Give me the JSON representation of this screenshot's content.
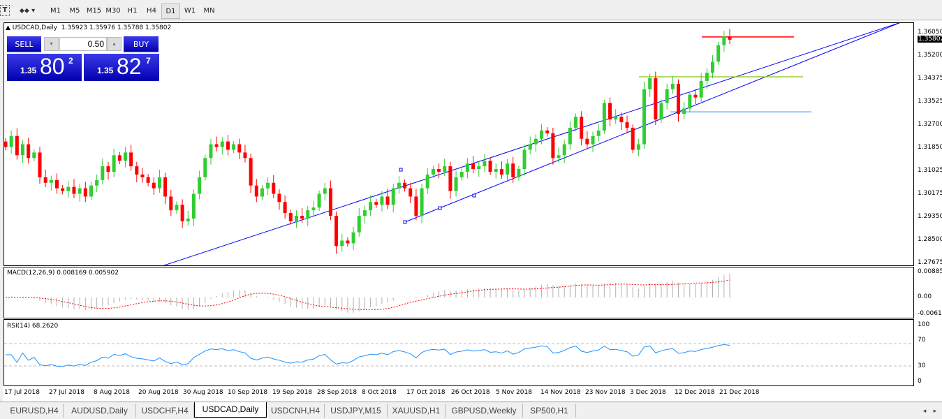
{
  "toolbar": {
    "icons": [
      "text-tool-icon",
      "objects-dropdown-icon"
    ],
    "timeframes": [
      "M1",
      "M5",
      "M15",
      "M30",
      "H1",
      "H4",
      "D1",
      "W1",
      "MN"
    ],
    "active_timeframe": "D1"
  },
  "chart": {
    "symbol_line": "USDCAD,Daily",
    "ohlc": "1.35923 1.35976 1.35788 1.35802",
    "trade_panel": {
      "sell_label": "SELL",
      "buy_label": "BUY",
      "volume": "0.50",
      "sell_prefix": "1.35",
      "sell_big": "80",
      "sell_sup": "2",
      "buy_prefix": "1.35",
      "buy_big": "82",
      "buy_sup": "7"
    },
    "price_axis": [
      "1.36050",
      "1.35200",
      "1.34375",
      "1.33525",
      "1.32700",
      "1.31850",
      "1.31025",
      "1.30175",
      "1.29350",
      "1.28500",
      "1.27675"
    ],
    "current_price": "1.35802",
    "colors": {
      "bull": "#32cd32",
      "bear": "#ff0000",
      "channel": "#0000ff",
      "level_red": "#ff0000",
      "level_olive": "#9acd32",
      "level_blue": "#1e90ff"
    },
    "closes": [
      1.319,
      1.323,
      1.316,
      1.32,
      1.315,
      1.317,
      1.308,
      1.306,
      1.307,
      1.304,
      1.303,
      1.3045,
      1.302,
      1.304,
      1.301,
      1.305,
      1.307,
      1.312,
      1.31,
      1.316,
      1.314,
      1.317,
      1.312,
      1.309,
      1.308,
      1.306,
      1.304,
      1.308,
      1.301,
      1.296,
      1.298,
      1.292,
      1.293,
      1.302,
      1.308,
      1.315,
      1.32,
      1.319,
      1.321,
      1.318,
      1.32,
      1.317,
      1.315,
      1.305,
      1.301,
      1.304,
      1.306,
      1.302,
      1.299,
      1.295,
      1.292,
      1.294,
      1.293,
      1.296,
      1.297,
      1.302,
      1.304,
      1.294,
      1.283,
      1.285,
      1.284,
      1.288,
      1.294,
      1.296,
      1.299,
      1.298,
      1.301,
      1.298,
      1.304,
      1.306,
      1.304,
      1.301,
      1.294,
      1.304,
      1.309,
      1.311,
      1.31,
      1.312,
      1.303,
      1.308,
      1.31,
      1.313,
      1.311,
      1.312,
      1.314,
      1.31,
      1.311,
      1.309,
      1.313,
      1.308,
      1.311,
      1.318,
      1.32,
      1.322,
      1.325,
      1.324,
      1.315,
      1.316,
      1.32,
      1.326,
      1.33,
      1.322,
      1.32,
      1.323,
      1.325,
      1.335,
      1.329,
      1.33,
      1.328,
      1.326,
      1.318,
      1.32,
      1.34,
      1.344,
      1.329,
      1.335,
      1.34,
      1.342,
      1.331,
      1.333,
      1.338,
      1.337,
      1.343,
      1.346,
      1.35,
      1.356,
      1.3592,
      1.358
    ],
    "levels": [
      1.359,
      1.3445,
      1.3318
    ]
  },
  "macd": {
    "label": "MACD(12,26,9) 0.008169 0.005902",
    "axis": [
      "0.00885",
      "0.00",
      "-0.00614"
    ]
  },
  "rsi": {
    "label": "RSI(14) 68.2620",
    "axis": [
      "100",
      "70",
      "30",
      "0"
    ]
  },
  "dates": [
    "17 Jul 2018",
    "27 Jul 2018",
    "8 Aug 2018",
    "20 Aug 2018",
    "30 Aug 2018",
    "10 Sep 2018",
    "19 Sep 2018",
    "28 Sep 2018",
    "8 Oct 2018",
    "17 Oct 2018",
    "26 Oct 2018",
    "5 Nov 2018",
    "14 Nov 2018",
    "23 Nov 2018",
    "3 Dec 2018",
    "12 Dec 2018",
    "21 Dec 2018"
  ],
  "tabs": [
    "EURUSD,H4",
    "AUDUSD,Daily",
    "USDCHF,H4",
    "USDCAD,Daily",
    "USDCNH,H4",
    "USDJPY,M15",
    "XAUUSD,H1",
    "GBPUSD,Weekly",
    "SP500,H1"
  ],
  "active_tab": "USDCAD,Daily"
}
